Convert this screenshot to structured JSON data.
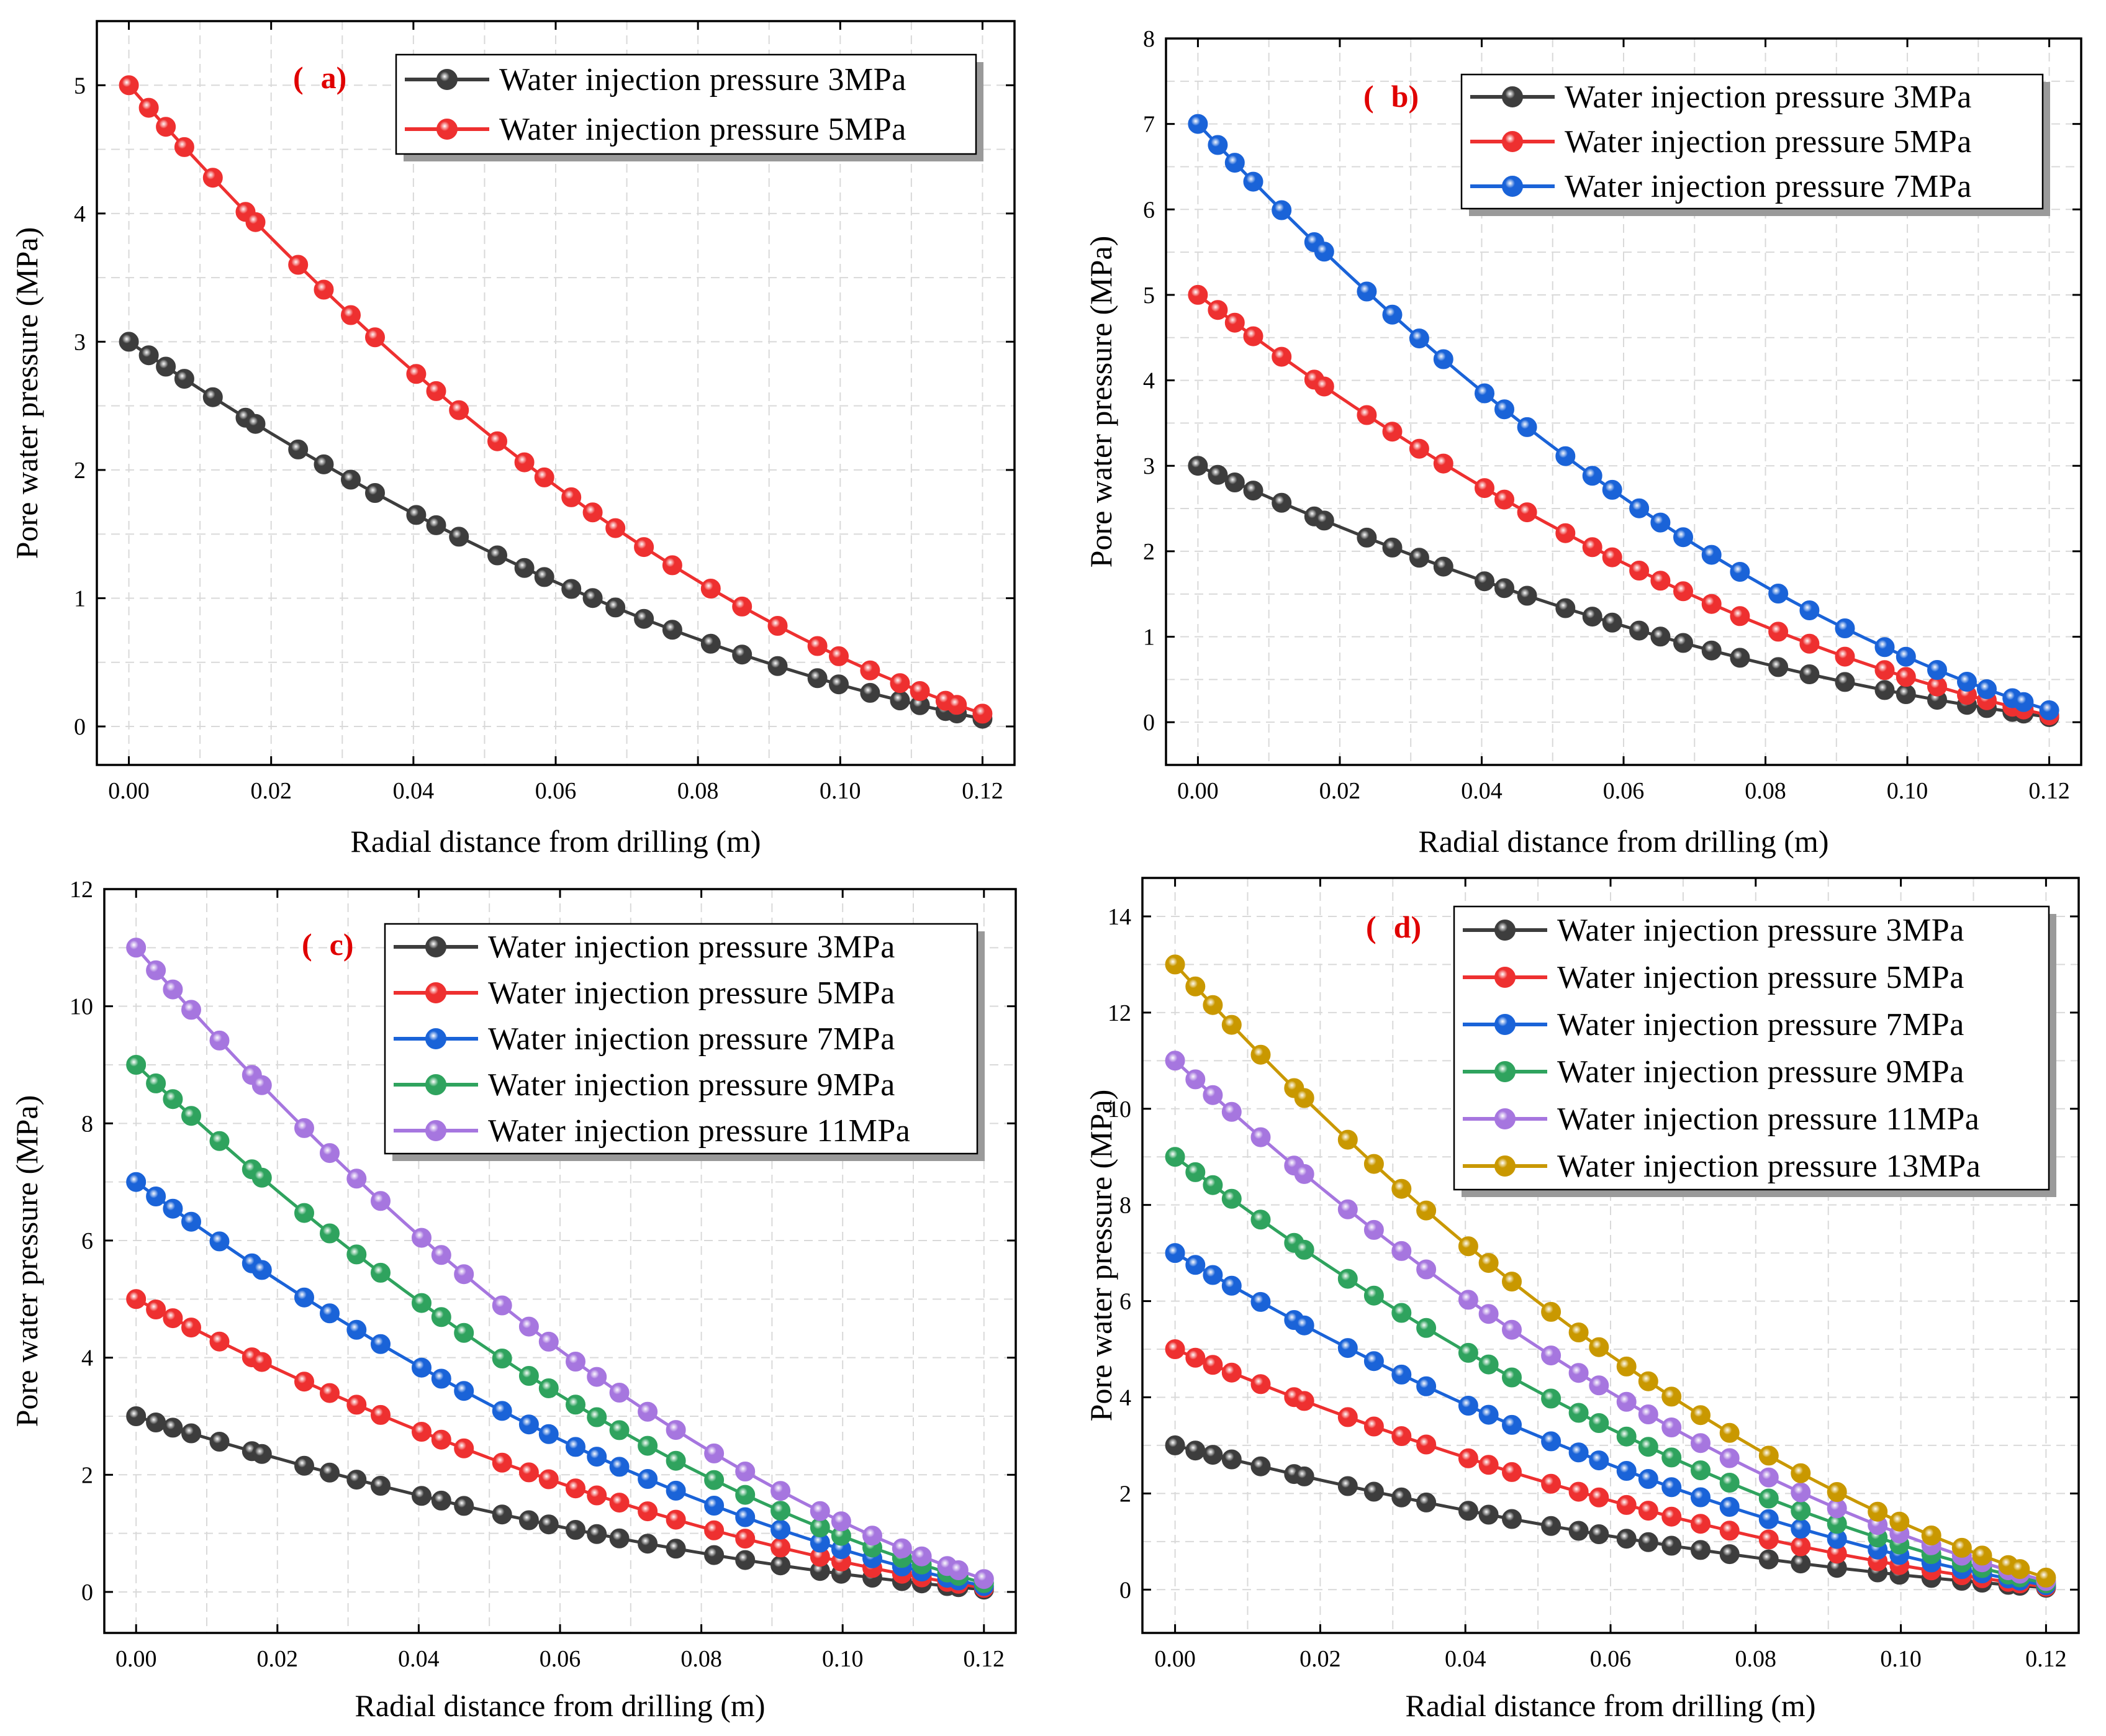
{
  "figure": {
    "x_axis_label": "Radial distance from drilling (m)",
    "y_axis_label": "Pore water pressure (MPa)",
    "series_colors": {
      "3MPa": "#3d3d3d",
      "5MPa": "#ee3030",
      "7MPa": "#1a63d8",
      "9MPa": "#2fa35e",
      "11MPa": "#a676df",
      "13MPa": "#c99800"
    },
    "tag_color": "#e00000"
  },
  "chart_data": [
    {
      "type": "line",
      "panel": "a",
      "tag_open": "(",
      "tag_letter": "a)",
      "xlabel": "Radial distance from drilling (m)",
      "ylabel": "Pore water pressure (MPa)",
      "xlim": [
        -0.0045,
        0.1245
      ],
      "ylim": [
        -0.3,
        5.5
      ],
      "x_ticks": [
        0.0,
        0.02,
        0.04,
        0.06,
        0.08,
        0.1,
        0.12
      ],
      "x_tick_labels": [
        "0.00",
        "0.02",
        "0.04",
        "0.06",
        "0.08",
        "0.10",
        "0.12"
      ],
      "y_ticks": [
        0,
        1,
        2,
        3,
        4,
        5
      ],
      "y_tick_labels": [
        "0",
        "1",
        "2",
        "3",
        "4",
        "5"
      ],
      "grid": true,
      "legend_position": "top-right",
      "series": [
        {
          "name": "Water injection pressure 3MPa",
          "color": "#3d3d3d",
          "start": 3,
          "end": 0.06
        },
        {
          "name": "Water injection pressure 5MPa",
          "color": "#ee3030",
          "start": 5,
          "end": 0.1
        }
      ]
    },
    {
      "type": "line",
      "panel": "b",
      "tag_open": "(",
      "tag_letter": "b)",
      "xlabel": "Radial distance from drilling (m)",
      "ylabel": "Pore water pressure (MPa)",
      "xlim": [
        -0.0045,
        0.1245
      ],
      "ylim": [
        -0.5,
        8.0
      ],
      "x_ticks": [
        0.0,
        0.02,
        0.04,
        0.06,
        0.08,
        0.1,
        0.12
      ],
      "x_tick_labels": [
        "0.00",
        "0.02",
        "0.04",
        "0.06",
        "0.08",
        "0.10",
        "0.12"
      ],
      "y_ticks": [
        0,
        1,
        2,
        3,
        4,
        5,
        6,
        7,
        8
      ],
      "y_tick_labels": [
        "0",
        "1",
        "2",
        "3",
        "4",
        "5",
        "6",
        "7",
        "8"
      ],
      "grid": true,
      "legend_position": "top-right",
      "series": [
        {
          "name": "Water injection pressure 3MPa",
          "color": "#3d3d3d",
          "start": 3,
          "end": 0.06
        },
        {
          "name": "Water injection pressure 5MPa",
          "color": "#ee3030",
          "start": 5,
          "end": 0.08
        },
        {
          "name": "Water injection pressure 7MPa",
          "color": "#1a63d8",
          "start": 7,
          "end": 0.14
        }
      ]
    },
    {
      "type": "line",
      "panel": "c",
      "tag_open": "(",
      "tag_letter": "c)",
      "xlabel": "Radial distance from drilling (m)",
      "ylabel": "Pore water pressure (MPa)",
      "xlim": [
        -0.0045,
        0.1245
      ],
      "ylim": [
        -0.7,
        12.0
      ],
      "x_ticks": [
        0.0,
        0.02,
        0.04,
        0.06,
        0.08,
        0.1,
        0.12
      ],
      "x_tick_labels": [
        "0.00",
        "0.02",
        "0.04",
        "0.06",
        "0.08",
        "0.10",
        "0.12"
      ],
      "y_ticks": [
        0,
        2,
        4,
        6,
        8,
        10,
        12
      ],
      "y_tick_labels": [
        "0",
        "2",
        "4",
        "6",
        "8",
        "10",
        "12"
      ],
      "grid": true,
      "legend_position": "top-right",
      "series": [
        {
          "name": "Water injection pressure 3MPa",
          "color": "#3d3d3d",
          "start": 3,
          "end": 0.04
        },
        {
          "name": "Water injection pressure 5MPa",
          "color": "#ee3030",
          "start": 5,
          "end": 0.07
        },
        {
          "name": "Water injection pressure 7MPa",
          "color": "#1a63d8",
          "start": 7,
          "end": 0.1
        },
        {
          "name": "Water injection pressure 9MPa",
          "color": "#2fa35e",
          "start": 9,
          "end": 0.15
        },
        {
          "name": "Water injection pressure 11MPa",
          "color": "#a676df",
          "start": 11,
          "end": 0.22
        }
      ]
    },
    {
      "type": "line",
      "panel": "d",
      "tag_open": "(",
      "tag_letter": "d)",
      "xlabel": "Radial distance from drilling (m)",
      "ylabel": "Pore water pressure (MPa)",
      "xlim": [
        -0.0045,
        0.1245
      ],
      "ylim": [
        -0.9,
        14.8
      ],
      "x_ticks": [
        0.0,
        0.02,
        0.04,
        0.06,
        0.08,
        0.1,
        0.12
      ],
      "x_tick_labels": [
        "0.00",
        "0.02",
        "0.04",
        "0.06",
        "0.08",
        "0.10",
        "0.12"
      ],
      "y_ticks": [
        0,
        2,
        4,
        6,
        8,
        10,
        12,
        14
      ],
      "y_tick_labels": [
        "0",
        "2",
        "4",
        "6",
        "8",
        "10",
        "12",
        "14"
      ],
      "grid": true,
      "legend_position": "top-right",
      "series": [
        {
          "name": "Water injection pressure 3MPa",
          "color": "#3d3d3d",
          "start": 3,
          "end": 0.04
        },
        {
          "name": "Water injection pressure 5MPa",
          "color": "#ee3030",
          "start": 5,
          "end": 0.06
        },
        {
          "name": "Water injection pressure 7MPa",
          "color": "#1a63d8",
          "start": 7,
          "end": 0.09
        },
        {
          "name": "Water injection pressure 9MPa",
          "color": "#2fa35e",
          "start": 9,
          "end": 0.13
        },
        {
          "name": "Water injection pressure 11MPa",
          "color": "#a676df",
          "start": 11,
          "end": 0.18
        },
        {
          "name": "Water injection pressure 13MPa",
          "color": "#c99800",
          "start": 13,
          "end": 0.25
        }
      ]
    }
  ],
  "x_samples": [
    0.0,
    0.0028,
    0.0052,
    0.0078,
    0.0118,
    0.0164,
    0.0178,
    0.0238,
    0.0274,
    0.0312,
    0.0346,
    0.0404,
    0.0432,
    0.0464,
    0.0518,
    0.0556,
    0.0584,
    0.0622,
    0.0652,
    0.0684,
    0.0724,
    0.0764,
    0.0818,
    0.0862,
    0.0912,
    0.0968,
    0.0998,
    0.1042,
    0.1084,
    0.1112,
    0.1148,
    0.1164,
    0.12
  ]
}
